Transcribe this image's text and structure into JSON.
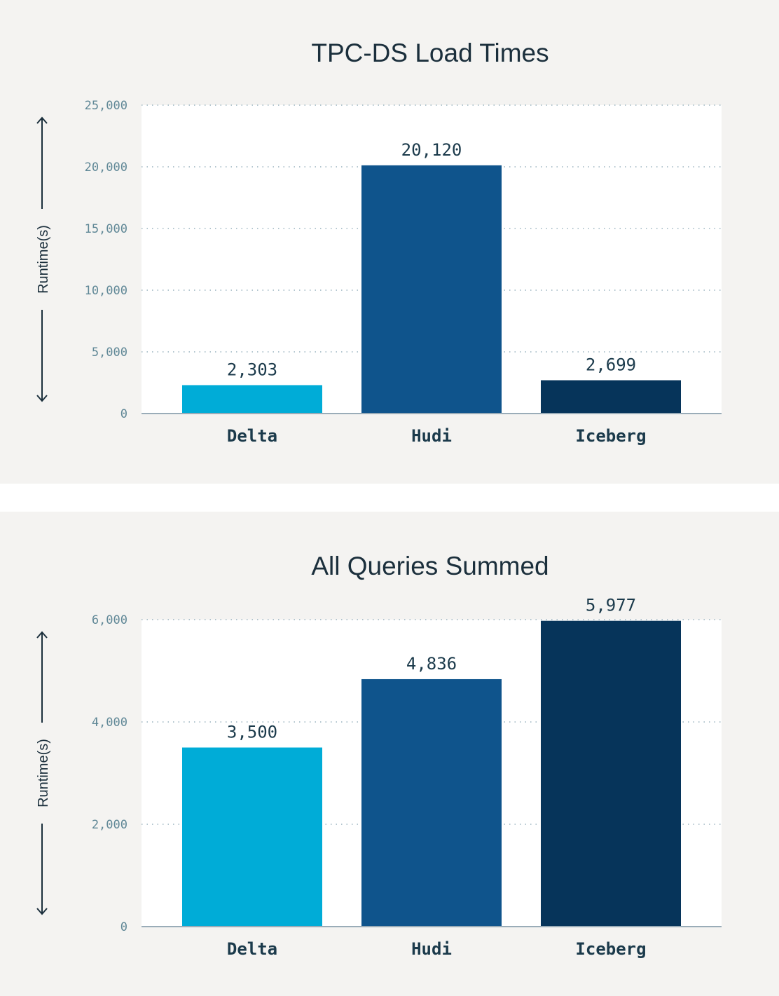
{
  "chart_data": [
    {
      "type": "bar",
      "title": "TPC-DS Load Times",
      "xlabel": "",
      "ylabel": "Runtime(s)",
      "categories": [
        "Delta",
        "Hudi",
        "Iceberg"
      ],
      "values": [
        2303,
        20120,
        2699
      ],
      "data_labels": [
        "2,303",
        "20,120",
        "2,699"
      ],
      "colors": [
        "#00acd7",
        "#0f548c",
        "#06345a"
      ],
      "ylim": [
        0,
        25000
      ],
      "yticks": [
        0,
        5000,
        10000,
        15000,
        20000,
        25000
      ],
      "ytick_labels": [
        "0",
        "5,000",
        "10,000",
        "15,000",
        "20,000",
        "25,000"
      ],
      "grid": true,
      "legend": "none"
    },
    {
      "type": "bar",
      "title": "All Queries Summed",
      "xlabel": "",
      "ylabel": "Runtime(s)",
      "categories": [
        "Delta",
        "Hudi",
        "Iceberg"
      ],
      "values": [
        3500,
        4836,
        5977
      ],
      "data_labels": [
        "3,500",
        "4,836",
        "5,977"
      ],
      "colors": [
        "#00acd7",
        "#0f548c",
        "#06345a"
      ],
      "ylim": [
        0,
        6000
      ],
      "yticks": [
        0,
        2000,
        4000,
        6000
      ],
      "ytick_labels": [
        "0",
        "2,000",
        "4,000",
        "6,000"
      ],
      "grid": true,
      "legend": "none"
    }
  ]
}
